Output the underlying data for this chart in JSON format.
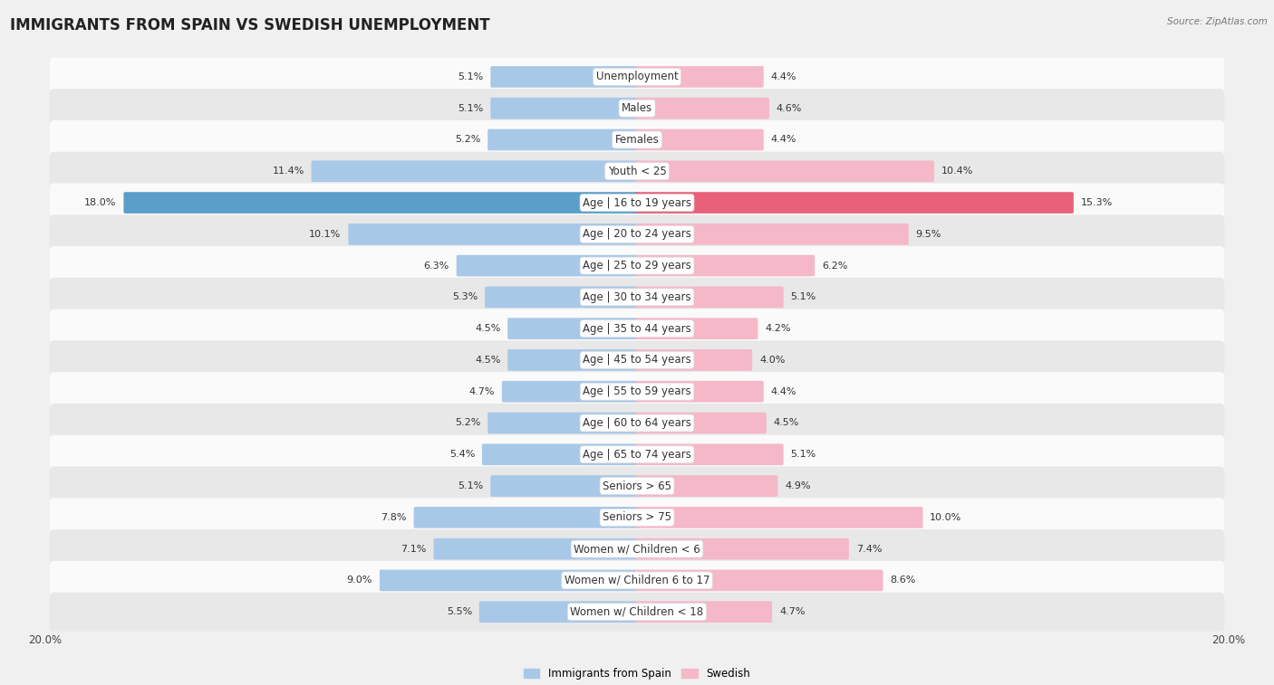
{
  "title": "IMMIGRANTS FROM SPAIN VS SWEDISH UNEMPLOYMENT",
  "source": "Source: ZipAtlas.com",
  "categories": [
    "Unemployment",
    "Males",
    "Females",
    "Youth < 25",
    "Age | 16 to 19 years",
    "Age | 20 to 24 years",
    "Age | 25 to 29 years",
    "Age | 30 to 34 years",
    "Age | 35 to 44 years",
    "Age | 45 to 54 years",
    "Age | 55 to 59 years",
    "Age | 60 to 64 years",
    "Age | 65 to 74 years",
    "Seniors > 65",
    "Seniors > 75",
    "Women w/ Children < 6",
    "Women w/ Children 6 to 17",
    "Women w/ Children < 18"
  ],
  "left_values": [
    5.1,
    5.1,
    5.2,
    11.4,
    18.0,
    10.1,
    6.3,
    5.3,
    4.5,
    4.5,
    4.7,
    5.2,
    5.4,
    5.1,
    7.8,
    7.1,
    9.0,
    5.5
  ],
  "right_values": [
    4.4,
    4.6,
    4.4,
    10.4,
    15.3,
    9.5,
    6.2,
    5.1,
    4.2,
    4.0,
    4.4,
    4.5,
    5.1,
    4.9,
    10.0,
    7.4,
    8.6,
    4.7
  ],
  "left_color": "#a8c8e8",
  "right_color": "#f5b8c8",
  "highlight_left_color": "#5a9ec9",
  "highlight_right_color": "#e8607a",
  "highlight_rows": [
    4
  ],
  "bar_height": 0.58,
  "xlim": 20.0,
  "bg_color": "#f0f0f0",
  "row_bg_light": "#fafafa",
  "row_bg_dark": "#e8e8e8",
  "legend_label_left": "Immigrants from Spain",
  "legend_label_right": "Swedish",
  "title_fontsize": 12,
  "label_fontsize": 8.5,
  "value_fontsize": 8,
  "axis_label_fontsize": 8.5
}
